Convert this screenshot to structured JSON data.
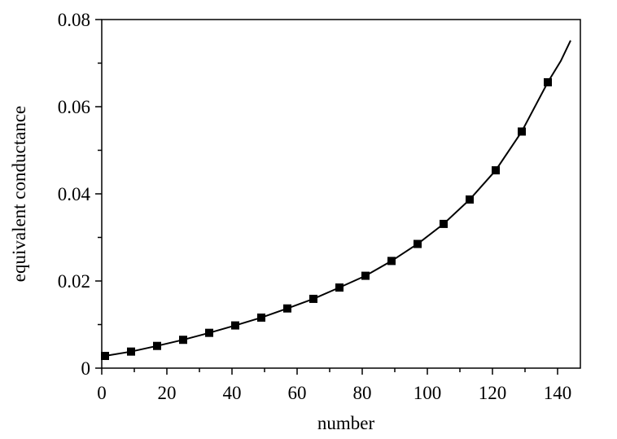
{
  "chart_data": {
    "type": "line",
    "title": "",
    "xlabel": "number",
    "ylabel": "equivalent conductance",
    "xlim": [
      0,
      147
    ],
    "ylim": [
      0,
      0.08
    ],
    "xticks": [
      0,
      20,
      40,
      60,
      80,
      100,
      120,
      140
    ],
    "xtick_labels": [
      "0",
      "20",
      "40",
      "60",
      "80",
      "100",
      "120",
      "140"
    ],
    "yticks": [
      0,
      0.02,
      0.04,
      0.06,
      0.08
    ],
    "ytick_labels": [
      "0",
      "0.02",
      "0.04",
      "0.06",
      "0.08"
    ],
    "grid": false,
    "legend": "none",
    "series": [
      {
        "name": "measured",
        "marker": "square",
        "x": [
          1,
          9,
          17,
          25,
          33,
          41,
          49,
          57,
          65,
          73,
          81,
          89,
          97,
          105,
          113,
          121,
          129,
          137
        ],
        "y": [
          0.0028,
          0.0038,
          0.0051,
          0.0065,
          0.0081,
          0.0098,
          0.0116,
          0.0137,
          0.0159,
          0.0185,
          0.0212,
          0.0246,
          0.0285,
          0.0331,
          0.0387,
          0.0454,
          0.0543,
          0.0656
        ]
      },
      {
        "name": "fit",
        "marker": "none",
        "x": [
          0,
          1,
          9,
          17,
          25,
          33,
          41,
          49,
          57,
          65,
          73,
          81,
          89,
          97,
          105,
          113,
          121,
          129,
          137,
          141,
          144
        ],
        "y": [
          0.0026,
          0.0028,
          0.0038,
          0.0051,
          0.0065,
          0.0081,
          0.0098,
          0.0116,
          0.0137,
          0.0159,
          0.0185,
          0.0212,
          0.0246,
          0.0285,
          0.0331,
          0.0387,
          0.0454,
          0.0543,
          0.0656,
          0.0705,
          0.0752
        ]
      }
    ]
  }
}
